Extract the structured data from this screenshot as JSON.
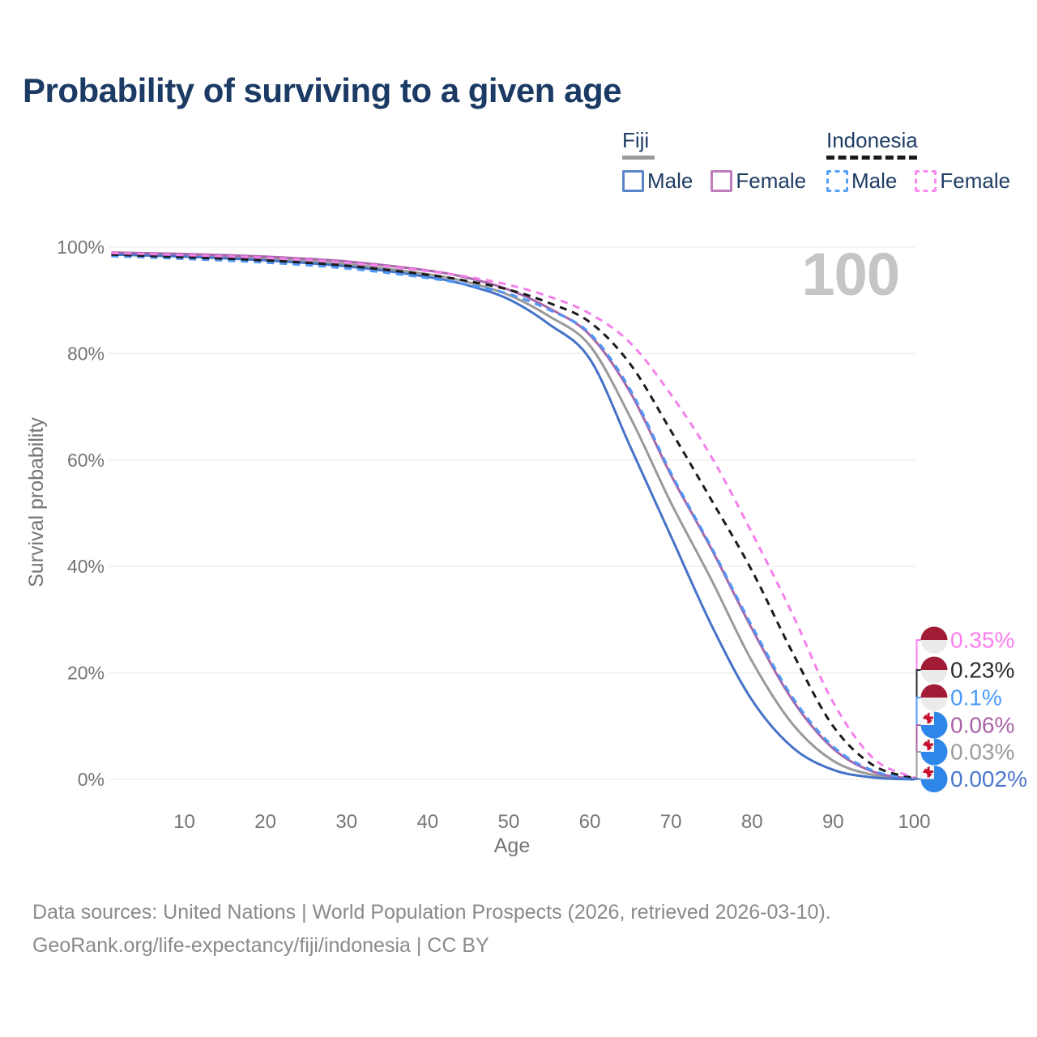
{
  "header": {
    "title": "Probability of surviving to a given age"
  },
  "legend": {
    "groups": [
      {
        "name": "Fiji",
        "line_style": "solid",
        "underline_color": "#9a9a9a",
        "items": [
          {
            "label": "Male",
            "color": "#5a85c8",
            "dashed": false
          },
          {
            "label": "Female",
            "color": "#bd7cba",
            "dashed": false
          }
        ]
      },
      {
        "name": "Indonesia",
        "line_style": "dashed",
        "underline_color": "#1a1a1a",
        "items": [
          {
            "label": "Male",
            "color": "#55a0f8",
            "dashed": true
          },
          {
            "label": "Female",
            "color": "#fb8aee",
            "dashed": true
          }
        ]
      }
    ]
  },
  "watermark": {
    "hovered_age": "100"
  },
  "chart_data": {
    "type": "line",
    "title": "Probability of surviving to a given age",
    "xlabel": "Age",
    "ylabel": "Survival probability",
    "xlim": [
      1,
      100
    ],
    "ylim": [
      0,
      100
    ],
    "grid": "horizontal",
    "legend_position": "top-right",
    "x_ticks": [
      10,
      20,
      30,
      40,
      50,
      60,
      70,
      80,
      90,
      100
    ],
    "y_ticks": [
      {
        "value": 0,
        "label": "0%"
      },
      {
        "value": 20,
        "label": "20%"
      },
      {
        "value": 40,
        "label": "40%"
      },
      {
        "value": 60,
        "label": "60%"
      },
      {
        "value": 80,
        "label": "80%"
      },
      {
        "value": 100,
        "label": "100%"
      }
    ],
    "x": [
      1,
      10,
      20,
      30,
      40,
      45,
      50,
      55,
      60,
      65,
      70,
      75,
      80,
      85,
      90,
      95,
      100
    ],
    "series": [
      {
        "id": "fiji-total",
        "country": "Fiji",
        "sex": "Both",
        "style": "solid",
        "color": "#9a9a9a",
        "values": [
          98.8,
          98.4,
          97.8,
          96.8,
          94.9,
          93.4,
          91.0,
          87.0,
          81.5,
          68.0,
          52.0,
          37.5,
          22.2,
          10.4,
          3.5,
          0.8,
          0.03
        ],
        "end_label": {
          "text": "0.03%",
          "color": "#9b9b9b",
          "flag": "fiji"
        }
      },
      {
        "id": "fiji-female",
        "country": "Fiji",
        "sex": "Female",
        "style": "solid",
        "color": "#a666a8",
        "values": [
          99.0,
          98.7,
          98.2,
          97.3,
          95.6,
          94.2,
          92.0,
          88.5,
          83.5,
          72.7,
          57.2,
          43.3,
          28.3,
          14.9,
          5.8,
          1.4,
          0.06
        ],
        "end_label": {
          "text": "0.06%",
          "color": "#a863a6",
          "flag": "fiji"
        }
      },
      {
        "id": "fiji-male",
        "country": "Fiji",
        "sex": "Male",
        "style": "solid",
        "color": "#4573c8",
        "values": [
          98.6,
          98.2,
          97.5,
          96.4,
          94.4,
          92.8,
          90.2,
          85.5,
          79.0,
          62.5,
          45.7,
          29.0,
          14.9,
          6.0,
          1.8,
          0.35,
          0.002
        ],
        "end_label": {
          "text": "0.002%",
          "color": "#4c77cc",
          "flag": "fiji"
        }
      },
      {
        "id": "indonesia-male",
        "country": "Indonesia",
        "sex": "Male",
        "style": "dashed",
        "color": "#4f97f7",
        "values": [
          98.3,
          97.8,
          97.1,
          96.0,
          94.2,
          92.9,
          91.2,
          88.2,
          83.8,
          73.2,
          57.6,
          43.6,
          28.8,
          15.4,
          6.2,
          1.6,
          0.1
        ],
        "end_label": {
          "text": "0.1%",
          "color": "#4d9bf8",
          "flag": "indonesia"
        }
      },
      {
        "id": "indonesia-total",
        "country": "Indonesia",
        "sex": "Both",
        "style": "dashed",
        "color": "#1c1c1c",
        "values": [
          98.6,
          98.1,
          97.5,
          96.5,
          94.8,
          93.6,
          92.0,
          89.5,
          85.9,
          78.0,
          65.5,
          52.5,
          39.2,
          23.8,
          10.0,
          2.6,
          0.23
        ],
        "end_label": {
          "text": "0.23%",
          "color": "#2b2b2b",
          "flag": "indonesia"
        }
      },
      {
        "id": "indonesia-female",
        "country": "Indonesia",
        "sex": "Female",
        "style": "dashed",
        "color": "#f580ec",
        "values": [
          98.9,
          98.5,
          98.0,
          97.1,
          95.5,
          94.4,
          92.9,
          90.7,
          87.5,
          82.0,
          72.3,
          60.6,
          46.3,
          31.0,
          14.5,
          3.9,
          0.35
        ],
        "end_label": {
          "text": "0.35%",
          "color": "#fb7dee",
          "flag": "indonesia"
        }
      }
    ]
  },
  "footer": {
    "line1": "Data sources: United Nations | World Population Prospects (2026, retrieved 2026-03-10).",
    "line2": "GeoRank.org/life-expectancy/fiji/indonesia | CC BY"
  }
}
